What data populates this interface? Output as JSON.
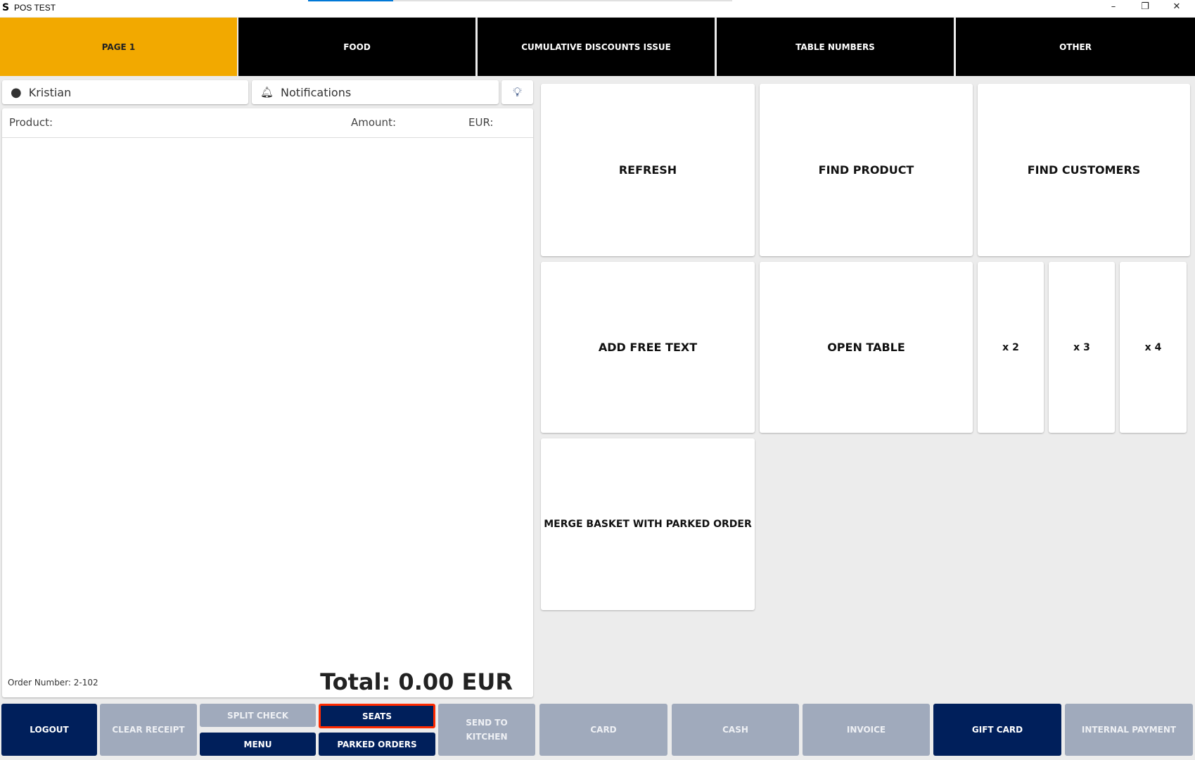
{
  "window": {
    "title": "POS TEST",
    "minimize": "–",
    "restore": "❐",
    "close": "✕",
    "loading_progress": 0.2
  },
  "tabs": [
    {
      "label": "PAGE 1",
      "active": true
    },
    {
      "label": "FOOD"
    },
    {
      "label": "CUMULATIVE DISCOUNTS ISSUE"
    },
    {
      "label": "TABLE NUMBERS"
    },
    {
      "label": "OTHER"
    }
  ],
  "user": {
    "name": "Kristian",
    "icon": "user-circle-icon"
  },
  "notifications": {
    "label": "Notifications",
    "icon": "bell-icon"
  },
  "tip": {
    "icon": "lightbulb-icon"
  },
  "receipt": {
    "col_product": "Product:",
    "col_amount": "Amount:",
    "col_currency": "EUR:",
    "order_number": "Order Number: 2-102",
    "total": "Total: 0.00 EUR"
  },
  "tiles": {
    "refresh": "REFRESH",
    "find_product": "FIND PRODUCT",
    "find_customers": "FIND CUSTOMERS",
    "add_free_text": "ADD FREE TEXT",
    "open_table": "OPEN TABLE",
    "x2": "x 2",
    "x3": "x 3",
    "x4": "x 4",
    "merge": "MERGE BASKET WITH PARKED ORDER"
  },
  "bottom": {
    "logout": "LOGOUT",
    "clear_receipt": "CLEAR RECEIPT",
    "split_check": "SPLIT CHECK",
    "menu": "MENU",
    "seats": "SEATS",
    "parked_orders": "PARKED ORDERS",
    "send_to_kitchen": "SEND TO KITCHEN",
    "card": "CARD",
    "cash": "CASH",
    "invoice": "INVOICE",
    "gift_card": "GIFT CARD",
    "internal_payment": "INTERNAL PAYMENT"
  },
  "colors": {
    "active_tab": "#f2a900",
    "navy": "#001f5b",
    "disabled": "#a0aabc",
    "highlight": "#ff2a00"
  }
}
